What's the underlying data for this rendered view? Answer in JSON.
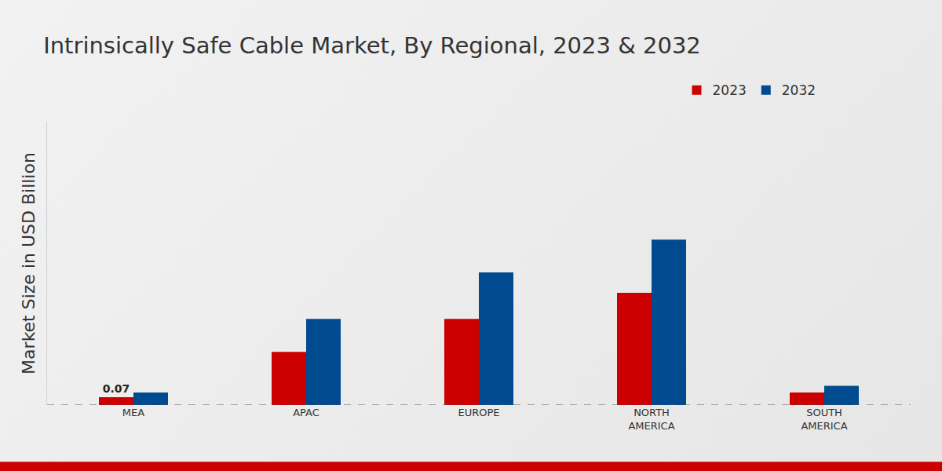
{
  "chart_data": {
    "type": "bar",
    "title": "Intrinsically Safe Cable Market, By Regional, 2023 & 2032",
    "y_label": "Market Size in USD Billion",
    "categories": [
      "MEA",
      "APAC",
      "EUROPE",
      "NORTH AMERICA",
      "SOUTH AMERICA"
    ],
    "series": [
      {
        "name": "2023",
        "color": "#cc0000",
        "values": [
          0.07,
          0.47,
          0.76,
          0.99,
          0.11
        ],
        "value_labels": [
          "0.07",
          null,
          null,
          null,
          null
        ]
      },
      {
        "name": "2032",
        "color": "#004a8f",
        "values": [
          0.11,
          0.76,
          1.17,
          1.46,
          0.17
        ]
      }
    ],
    "ylim": [
      0,
      2.5
    ],
    "yticks": [
      0
    ],
    "grid": false,
    "legend": "top-right",
    "tick_labels": "x"
  }
}
